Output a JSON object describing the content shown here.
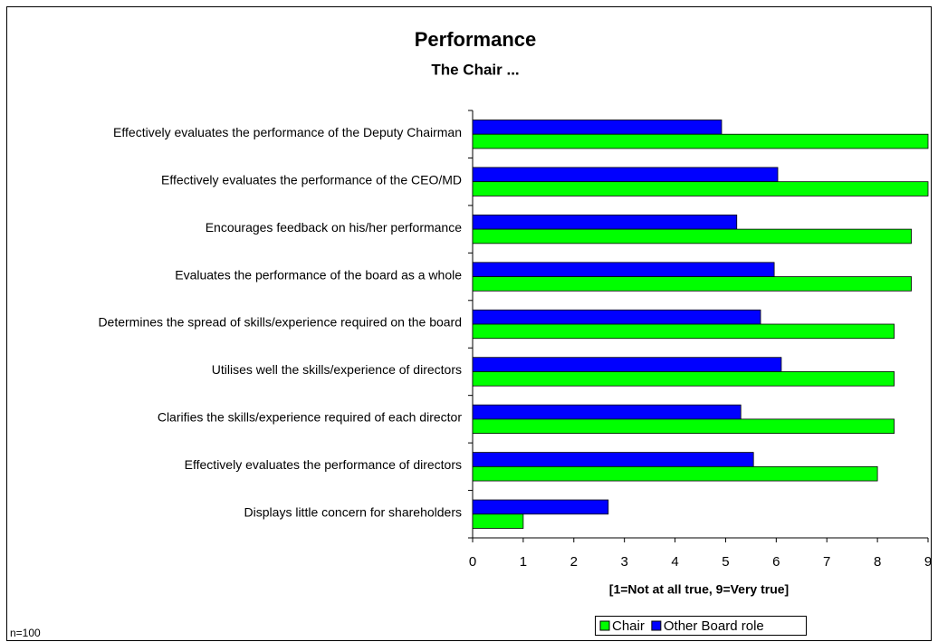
{
  "chart_data": {
    "type": "bar",
    "orientation": "horizontal",
    "title": "Performance",
    "subtitle": "The Chair ...",
    "x_label": "[1=Not at all true, 9=Very true]",
    "note": "n=100",
    "categories": [
      "Effectively evaluates the performance of the Deputy Chairman",
      "Effectively evaluates the performance of the CEO/MD",
      "Encourages feedback on his/her performance",
      "Evaluates the performance of the board as a whole",
      "Determines the spread of skills/experience required on the board",
      "Utilises well the skills/experience of directors",
      "Clarifies the skills/experience required of each director",
      "Effectively evaluates the performance of directors",
      "Displays little concern for shareholders"
    ],
    "series": [
      {
        "name": "Chair",
        "color": "#00ff00",
        "values": [
          9,
          9,
          8.67,
          8.67,
          8.33,
          8.33,
          8.33,
          8,
          1
        ]
      },
      {
        "name": "Other Board role",
        "color": "#0000ff",
        "values": [
          4.92,
          6.03,
          5.22,
          5.96,
          5.69,
          6.1,
          5.3,
          5.55,
          2.68
        ]
      }
    ],
    "xlim": [
      0,
      9
    ],
    "xticks": [
      0,
      1,
      2,
      3,
      4,
      5,
      6,
      7,
      8,
      9
    ],
    "grid": false,
    "legend": "bottom"
  }
}
